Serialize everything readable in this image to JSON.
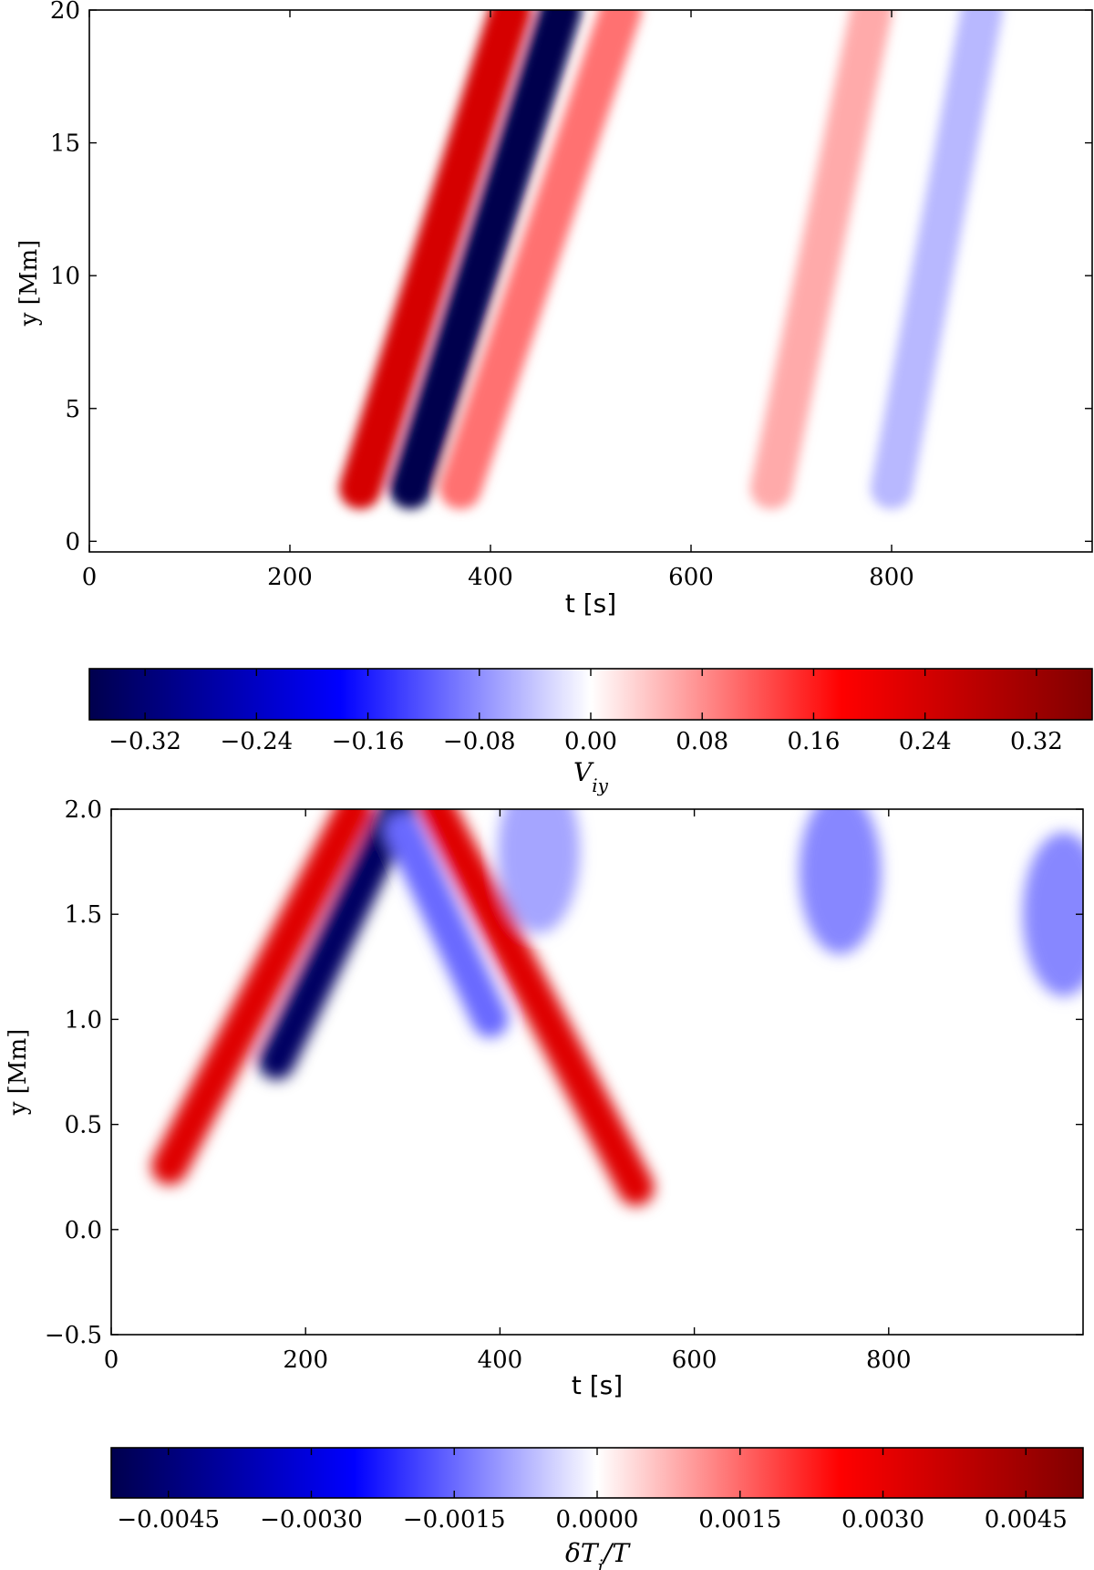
{
  "chart_data": [
    {
      "type": "heatmap",
      "xlabel": "t [s]",
      "ylabel": "y [Mm]",
      "x_ticks": [
        "0",
        "200",
        "400",
        "600",
        "800"
      ],
      "x_tick_values": [
        0,
        200,
        400,
        600,
        800
      ],
      "y_ticks": [
        "0",
        "5",
        "10",
        "15",
        "20"
      ],
      "y_tick_values": [
        0,
        5,
        10,
        15,
        20
      ],
      "xlim": [
        0,
        1000
      ],
      "ylim": [
        -0.4,
        20
      ],
      "colormap": "seismic (blue-white-red)",
      "colorbar": {
        "label": "V_iy",
        "tick_labels": [
          "−0.32",
          "−0.24",
          "−0.16",
          "−0.08",
          "0.00",
          "0.08",
          "0.16",
          "0.24",
          "0.32"
        ],
        "tick_values": [
          -0.32,
          -0.24,
          -0.16,
          -0.08,
          0.0,
          0.08,
          0.16,
          0.24,
          0.32
        ],
        "range": [
          -0.36,
          0.36
        ]
      },
      "features": [
        {
          "description": "red ridge",
          "points": [
            [
              270,
              2
            ],
            [
              420,
              20
            ]
          ],
          "sign": 1,
          "peak": 0.24
        },
        {
          "description": "blue ridge",
          "points": [
            [
              320,
              2
            ],
            [
              470,
              20
            ]
          ],
          "sign": -1,
          "peak": 0.36
        },
        {
          "description": "pink band",
          "points": [
            [
              370,
              2
            ],
            [
              530,
              20
            ]
          ],
          "sign": 1,
          "peak": 0.1
        },
        {
          "description": "pink band",
          "points": [
            [
              680,
              2
            ],
            [
              780,
              20
            ]
          ],
          "sign": 1,
          "peak": 0.06
        },
        {
          "description": "pale blue band",
          "points": [
            [
              800,
              2
            ],
            [
              890,
              20
            ]
          ],
          "sign": -1,
          "peak": 0.05
        }
      ]
    },
    {
      "type": "heatmap",
      "xlabel": "t [s]",
      "ylabel": "y [Mm]",
      "x_ticks": [
        "0",
        "200",
        "400",
        "600",
        "800"
      ],
      "x_tick_values": [
        0,
        200,
        400,
        600,
        800
      ],
      "y_ticks": [
        "−0.5",
        "0.0",
        "0.5",
        "1.0",
        "1.5",
        "2.0"
      ],
      "y_tick_values": [
        -0.5,
        0.0,
        0.5,
        1.0,
        1.5,
        2.0
      ],
      "xlim": [
        0,
        1000
      ],
      "ylim": [
        -0.5,
        2.0
      ],
      "colormap": "seismic (blue-white-red)",
      "colorbar": {
        "label": "δT_i/T",
        "tick_labels": [
          "−0.0045",
          "−0.0030",
          "−0.0015",
          "0.0000",
          "0.0015",
          "0.0030",
          "0.0045"
        ],
        "tick_values": [
          -0.0045,
          -0.003,
          -0.0015,
          0.0,
          0.0015,
          0.003,
          0.0045
        ],
        "range": [
          -0.0051,
          0.0051
        ]
      },
      "features": [
        {
          "description": "red rising ridge",
          "points": [
            [
              60,
              0.3
            ],
            [
              250,
              2.0
            ]
          ],
          "sign": 1,
          "peak": 0.0032
        },
        {
          "description": "blue rising ridge",
          "points": [
            [
              170,
              0.8
            ],
            [
              295,
              2.0
            ]
          ],
          "sign": -1,
          "peak": 0.0048
        },
        {
          "description": "blue falling ridge",
          "points": [
            [
              300,
              1.9
            ],
            [
              390,
              1.0
            ]
          ],
          "sign": -1,
          "peak": 0.0015
        },
        {
          "description": "red falling ridge",
          "points": [
            [
              335,
              2.0
            ],
            [
              540,
              0.2
            ]
          ],
          "sign": 1,
          "peak": 0.0032
        },
        {
          "description": "pale blue patch",
          "points": [
            [
              440,
              1.8
            ]
          ],
          "sign": -1,
          "peak": 0.0009
        },
        {
          "description": "pale blue patch",
          "points": [
            [
              750,
              1.7
            ]
          ],
          "sign": -1,
          "peak": 0.0012
        },
        {
          "description": "pale blue patch",
          "points": [
            [
              980,
              1.5
            ]
          ],
          "sign": -1,
          "peak": 0.0012
        }
      ]
    }
  ]
}
